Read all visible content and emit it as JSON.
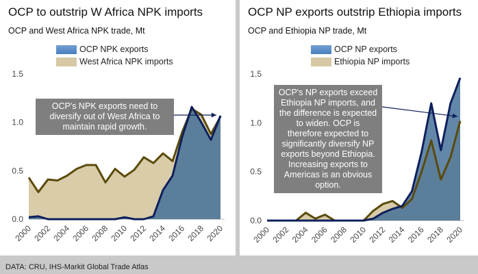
{
  "chart_data": [
    {
      "type": "area",
      "title": "OCP to outstrip W Africa NPK imports",
      "subtitle": "OCP and West Africa NPK trade, Mt",
      "xlabel": "",
      "ylabel": "",
      "ylim": [
        0,
        1.5
      ],
      "yticks": [
        "0.0",
        "0.5",
        "1.0",
        "1.5"
      ],
      "xticks": [
        "2000",
        "2002",
        "2004",
        "2006",
        "2008",
        "2010",
        "2012",
        "2014",
        "2016",
        "2018",
        "2020"
      ],
      "x": [
        2000,
        2001,
        2002,
        2003,
        2004,
        2005,
        2006,
        2007,
        2008,
        2009,
        2010,
        2011,
        2012,
        2013,
        2014,
        2015,
        2016,
        2017,
        2018,
        2019,
        2020
      ],
      "series": [
        {
          "name": "OCP NPK exports",
          "color": "#3f6d96",
          "line": "#0e1f5c",
          "values": [
            0.02,
            0.03,
            0.0,
            0.0,
            0.0,
            0.0,
            0.0,
            0.0,
            0.0,
            0.0,
            0.02,
            0.0,
            0.0,
            0.03,
            0.3,
            0.45,
            0.85,
            1.16,
            1.0,
            0.82,
            1.07
          ]
        },
        {
          "name": "West Africa NPK imports",
          "color": "#d6c9a4",
          "line": "#5b4a0a",
          "values": [
            0.43,
            0.28,
            0.41,
            0.4,
            0.45,
            0.52,
            0.56,
            0.56,
            0.38,
            0.52,
            0.44,
            0.51,
            0.64,
            0.58,
            0.68,
            0.6,
            0.9,
            1.14,
            1.08,
            0.88,
            1.06
          ]
        }
      ],
      "legend": "top-center",
      "annotation": "OCP's NPK exports need to diversify out of West Africa to maintain rapid growth."
    },
    {
      "type": "area",
      "title": "OCP NP exports outstrip Ethiopia imports",
      "subtitle": "OCP and Ethiopia NP trade, Mt",
      "xlabel": "",
      "ylabel": "",
      "ylim": [
        0,
        1.5
      ],
      "yticks": [
        "0.0",
        "0.5",
        "1.0",
        "1.5"
      ],
      "xticks": [
        "2000",
        "2002",
        "2004",
        "2006",
        "2008",
        "2010",
        "2012",
        "2014",
        "2016",
        "2018",
        "2020"
      ],
      "x": [
        2000,
        2001,
        2002,
        2003,
        2004,
        2005,
        2006,
        2007,
        2008,
        2009,
        2010,
        2011,
        2012,
        2013,
        2014,
        2015,
        2016,
        2017,
        2018,
        2019,
        2020
      ],
      "series": [
        {
          "name": "OCP NP exports",
          "color": "#4f7fb5",
          "line": "#0e1f5c",
          "values": [
            0.0,
            0.0,
            0.0,
            0.0,
            0.0,
            0.0,
            0.0,
            0.0,
            0.0,
            0.0,
            0.0,
            0.02,
            0.08,
            0.12,
            0.15,
            0.3,
            0.7,
            1.2,
            0.72,
            1.2,
            1.46
          ]
        },
        {
          "name": "Ethiopia NP imports",
          "color": "#d6c9a4",
          "line": "#5b4a0a",
          "values": [
            0.0,
            0.0,
            0.0,
            0.0,
            0.08,
            0.02,
            0.06,
            0.0,
            0.0,
            0.0,
            0.0,
            0.1,
            0.17,
            0.2,
            0.13,
            0.22,
            0.5,
            0.82,
            0.42,
            0.65,
            1.02
          ]
        }
      ],
      "legend": "top-center",
      "annotation": "OCP's NP exports exceed Ethiopia NP imports, and the difference is expected to widen. OCP is therefore expected to significantly diversify NP exports beyond Ethiopia. Increasing exports to Americas is an obvious option."
    }
  ],
  "footer": "DATA: CRU, IHS-Markit Global Trade Atlas"
}
